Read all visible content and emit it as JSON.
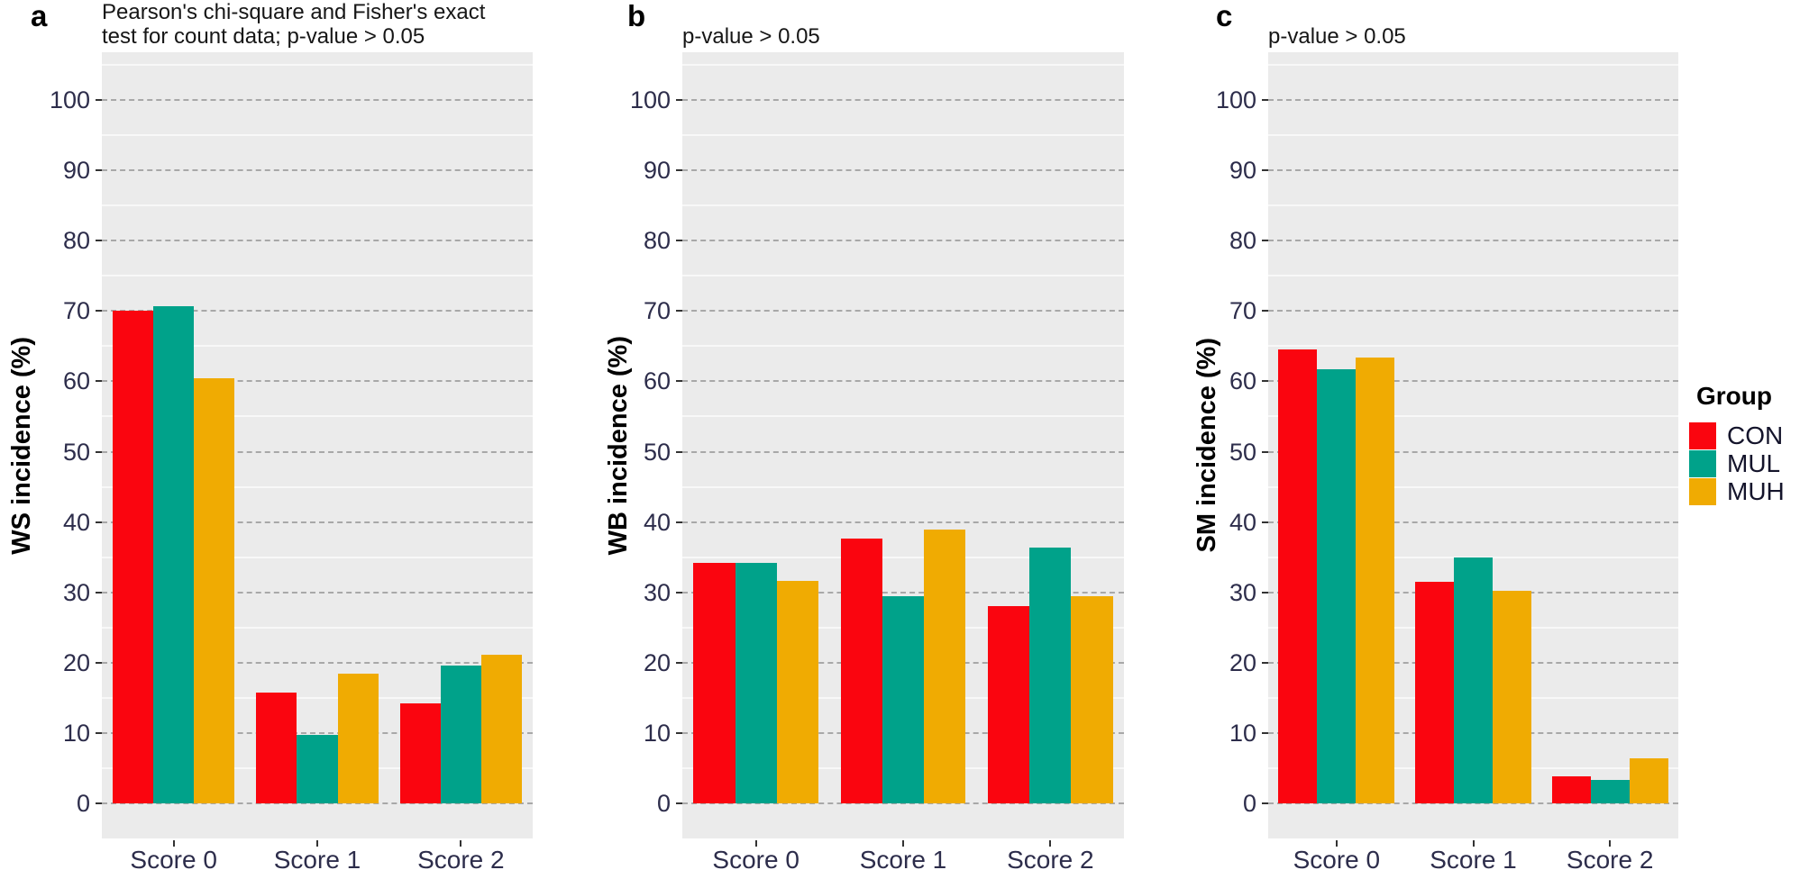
{
  "figure": {
    "background": "#FFFFFF",
    "panel_background": "#EBEBEB",
    "grid_major_color": "#A8A8A8",
    "grid_minor_color": "#F8F8F8",
    "axis_text_color": "#2D2D4B",
    "axis_title_color": "#000000",
    "title_color": "#161616"
  },
  "legend": {
    "title": "Group",
    "position": "right",
    "items": [
      {
        "label": "CON",
        "color": "#FA050F"
      },
      {
        "label": "MUL",
        "color": "#00A28A"
      },
      {
        "label": "MUH",
        "color": "#F0AB02"
      }
    ]
  },
  "chart_data": [
    {
      "type": "bar",
      "panel_label": "a",
      "title": "Pearson's chi-square and Fisher's exact test for count data; p-value > 0.05",
      "title_lines": [
        "Pearson's chi-square and Fisher's exact",
        "test for count data; p-value > 0.05"
      ],
      "xlabel": "",
      "ylabel": "WS incidence (%)",
      "categories": [
        "Score 0",
        "Score 1",
        "Score 2"
      ],
      "series": [
        {
          "name": "CON",
          "values": [
            70.0,
            15.8,
            14.2
          ]
        },
        {
          "name": "MUL",
          "values": [
            70.7,
            9.7,
            19.6
          ]
        },
        {
          "name": "MUH",
          "values": [
            60.5,
            18.4,
            21.1
          ]
        }
      ],
      "ylim": [
        0,
        100
      ],
      "ytick_step": 10,
      "grid": true
    },
    {
      "type": "bar",
      "panel_label": "b",
      "title": "p-value > 0.05",
      "title_lines": [
        "p-value > 0.05"
      ],
      "xlabel": "",
      "ylabel": "WB incidence (%)",
      "categories": [
        "Score 0",
        "Score 1",
        "Score 2"
      ],
      "series": [
        {
          "name": "CON",
          "values": [
            34.2,
            37.7,
            28.1
          ]
        },
        {
          "name": "MUL",
          "values": [
            34.2,
            29.4,
            36.4
          ]
        },
        {
          "name": "MUH",
          "values": [
            31.6,
            38.9,
            29.5
          ]
        }
      ],
      "ylim": [
        0,
        100
      ],
      "ytick_step": 10,
      "grid": true
    },
    {
      "type": "bar",
      "panel_label": "c",
      "title": "p-value > 0.05",
      "title_lines": [
        "p-value > 0.05"
      ],
      "xlabel": "",
      "ylabel": "SM incidence (%)",
      "categories": [
        "Score 0",
        "Score 1",
        "Score 2"
      ],
      "series": [
        {
          "name": "CON",
          "values": [
            64.6,
            31.5,
            3.9
          ]
        },
        {
          "name": "MUL",
          "values": [
            61.7,
            35.0,
            3.3
          ]
        },
        {
          "name": "MUH",
          "values": [
            63.4,
            30.2,
            6.4
          ]
        }
      ],
      "ylim": [
        0,
        100
      ],
      "ytick_step": 10,
      "grid": true
    }
  ]
}
